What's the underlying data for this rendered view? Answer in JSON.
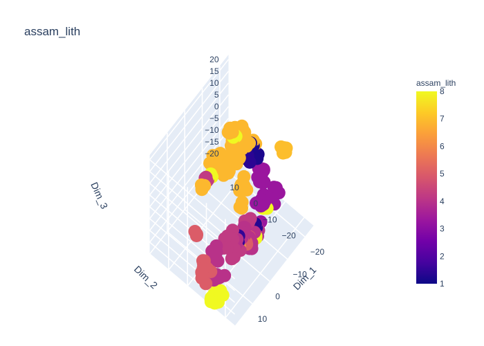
{
  "chart_data": {
    "type": "scatter",
    "title": "assam_lith",
    "colorbar": {
      "title": "assam_lith",
      "range": [
        1,
        8
      ],
      "ticks": [
        "1",
        "2",
        "3",
        "4",
        "5",
        "6",
        "7",
        "8"
      ],
      "colors": [
        "#0d0887",
        "#46039f",
        "#7201a8",
        "#9c179e",
        "#bd3786",
        "#d8576b",
        "#ed7953",
        "#fb9f3a",
        "#fdca26",
        "#f0f921"
      ]
    },
    "axes": {
      "x": {
        "label": "Dim_1",
        "range": [
          -25,
          20
        ],
        "ticks": [
          "−20",
          "−10",
          "0",
          "10"
        ]
      },
      "y": {
        "label": "Dim_2",
        "range": [
          -25,
          20
        ],
        "ticks": [
          "−20",
          "−10",
          "0",
          "10"
        ]
      },
      "z": {
        "label": "Dim_3",
        "range": [
          -20,
          22
        ],
        "ticks": [
          "−20",
          "−15",
          "−10",
          "−5",
          "0",
          "5",
          "10",
          "15",
          "20"
        ]
      }
    },
    "clusters": [
      {
        "x": -6,
        "y": -16,
        "z": 13,
        "color_value": 3.3,
        "n": 10,
        "spread": 2.5
      },
      {
        "x": -16,
        "y": -17,
        "z": 15,
        "color_value": 7.0,
        "n": 6,
        "spread": 1.5
      },
      {
        "x": -9,
        "y": -2,
        "z": 19,
        "color_value": 6.9,
        "n": 7,
        "spread": 2.0
      },
      {
        "x": -11,
        "y": 1,
        "z": 15,
        "color_value": 6.9,
        "n": 5,
        "spread": 1.8
      },
      {
        "x": -12,
        "y": -4,
        "z": 12,
        "color_value": 1.2,
        "n": 3,
        "spread": 1.2
      },
      {
        "x": -14,
        "y": -2,
        "z": 10,
        "color_value": 6.9,
        "n": 6,
        "spread": 1.8
      },
      {
        "x": -6,
        "y": 1,
        "z": 8,
        "color_value": 6.9,
        "n": 18,
        "spread": 4.0
      },
      {
        "x": -12,
        "y": 3,
        "z": 6,
        "color_value": 6.9,
        "n": 12,
        "spread": 3.0
      },
      {
        "x": -10,
        "y": -5,
        "z": 9,
        "color_value": 1.4,
        "n": 3,
        "spread": 1.5
      },
      {
        "x": -15,
        "y": 4,
        "z": 7,
        "color_value": 6.9,
        "n": 3,
        "spread": 1.0
      },
      {
        "x": -16,
        "y": 8,
        "z": 4,
        "color_value": 6.9,
        "n": 8,
        "spread": 2.0
      },
      {
        "x": -17,
        "y": 10,
        "z": 3,
        "color_value": 8.0,
        "n": 4,
        "spread": 1.0
      },
      {
        "x": -18,
        "y": 12,
        "z": 1,
        "color_value": 6.9,
        "n": 4,
        "spread": 1.2
      },
      {
        "x": 0,
        "y": -22,
        "z": 9,
        "color_value": 3.3,
        "n": 9,
        "spread": 3.0
      },
      {
        "x": 2,
        "y": -20,
        "z": 2,
        "color_value": 1.3,
        "n": 3,
        "spread": 1.2
      },
      {
        "x": 4,
        "y": -21,
        "z": 0,
        "color_value": 8.0,
        "n": 3,
        "spread": 1.0
      },
      {
        "x": 6,
        "y": -18,
        "z": 0,
        "color_value": 5.0,
        "n": 5,
        "spread": 1.5
      },
      {
        "x": 3,
        "y": -16,
        "z": 2,
        "color_value": 4.2,
        "n": 5,
        "spread": 1.5
      },
      {
        "x": 4,
        "y": -17,
        "z": -2,
        "color_value": 4.0,
        "n": 20,
        "spread": 3.5
      },
      {
        "x": 8,
        "y": -12,
        "z": -6,
        "color_value": 4.2,
        "n": 12,
        "spread": 3.0
      },
      {
        "x": 6,
        "y": -14,
        "z": -4,
        "color_value": 1.5,
        "n": 3,
        "spread": 1.0
      },
      {
        "x": 8,
        "y": -16,
        "z": -4,
        "color_value": 6.9,
        "n": 2,
        "spread": 0.8
      },
      {
        "x": 12,
        "y": -8,
        "z": -8,
        "color_value": 4.0,
        "n": 7,
        "spread": 2.0
      },
      {
        "x": 14,
        "y": -11,
        "z": -14,
        "color_value": 4.0,
        "n": 6,
        "spread": 2.0
      },
      {
        "x": 18,
        "y": -13,
        "z": -17,
        "color_value": 8.0,
        "n": 12,
        "spread": 2.5
      },
      {
        "x": 16,
        "y": -6,
        "z": -14,
        "color_value": 5.0,
        "n": 8,
        "spread": 2.0
      },
      {
        "x": 14,
        "y": -4,
        "z": -12,
        "color_value": 5.0,
        "n": 6,
        "spread": 1.5
      },
      {
        "x": 10,
        "y": 4,
        "z": -10,
        "color_value": 5.0,
        "n": 3,
        "spread": 1.0
      },
      {
        "x": -4,
        "y": 9,
        "z": 4,
        "color_value": 6.9,
        "n": 5,
        "spread": 1.5
      },
      {
        "x": -5,
        "y": 11,
        "z": -4,
        "color_value": 8.0,
        "n": 3,
        "spread": 1.0
      },
      {
        "x": -2,
        "y": 10,
        "z": -3,
        "color_value": 4.2,
        "n": 4,
        "spread": 1.0
      },
      {
        "x": -1,
        "y": 12,
        "z": -5,
        "color_value": 6.9,
        "n": 4,
        "spread": 1.2
      },
      {
        "x": -10,
        "y": 8,
        "z": -6,
        "color_value": 6.9,
        "n": 3,
        "spread": 1.0
      },
      {
        "x": -8,
        "y": -20,
        "z": 6,
        "color_value": 3.3,
        "n": 6,
        "spread": 2.0
      },
      {
        "x": -14,
        "y": -6,
        "z": 6,
        "color_value": 1.2,
        "n": 2,
        "spread": 0.8
      },
      {
        "x": -6,
        "y": -6,
        "z": 4,
        "color_value": 6.9,
        "n": 8,
        "spread": 2.5
      },
      {
        "x": 2,
        "y": -24,
        "z": 12,
        "color_value": 8.0,
        "n": 3,
        "spread": 1.0
      },
      {
        "x": 4,
        "y": -14,
        "z": 8,
        "color_value": 6.9,
        "n": 3,
        "spread": 1.0
      }
    ]
  }
}
